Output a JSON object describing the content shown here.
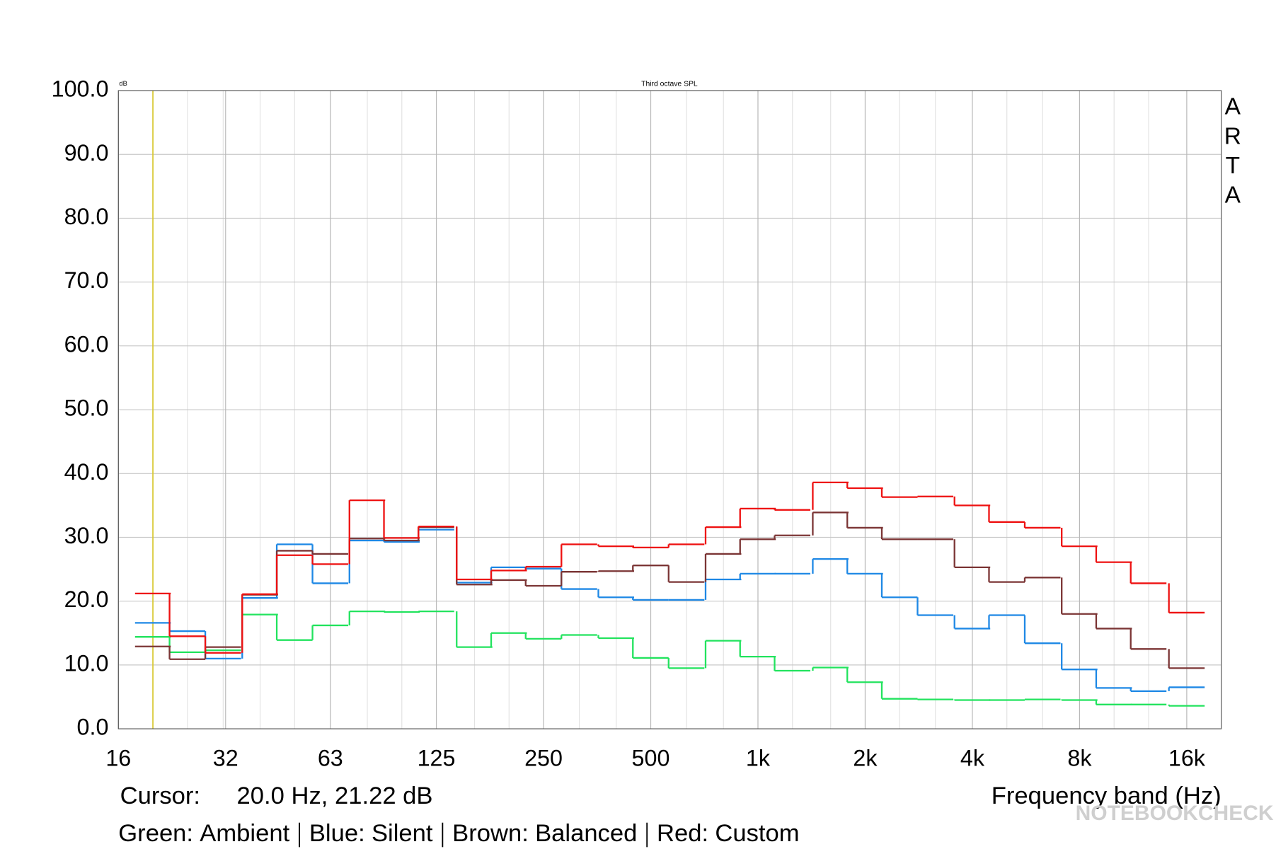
{
  "chart_data": {
    "type": "step",
    "title": "Third octave SPL",
    "y_unit": "dB",
    "side_label": "ARTA",
    "xlabel": "Frequency band (Hz)",
    "cursor": {
      "label": "Cursor:",
      "text": "20.0 Hz, 21.22 dB",
      "x": 20,
      "color": "#d8c830"
    },
    "watermark": "NOTEBOOKCHECK",
    "log_x": true,
    "grid": true,
    "xlim": [
      16,
      20000
    ],
    "xticks": [
      16,
      32,
      63,
      125,
      250,
      500,
      {
        "value": 1000,
        "label": "1k"
      },
      {
        "value": 2000,
        "label": "2k"
      },
      {
        "value": 4000,
        "label": "4k"
      },
      {
        "value": 8000,
        "label": "8k"
      },
      {
        "value": 16000,
        "label": "16k"
      }
    ],
    "ylim": [
      0,
      100
    ],
    "yticks": [
      {
        "value": 0,
        "label": "0.0"
      },
      {
        "value": 10,
        "label": "10.0"
      },
      {
        "value": 20,
        "label": "20.0"
      },
      {
        "value": 30,
        "label": "30.0"
      },
      {
        "value": 40,
        "label": "40.0"
      },
      {
        "value": 50,
        "label": "50.0"
      },
      {
        "value": 60,
        "label": "60.0"
      },
      {
        "value": 70,
        "label": "70.0"
      },
      {
        "value": 80,
        "label": "80.0"
      },
      {
        "value": 90,
        "label": "90.0"
      },
      {
        "value": 100,
        "label": "100.0"
      }
    ],
    "x": [
      20,
      25,
      31.5,
      40,
      50,
      63,
      80,
      100,
      125,
      160,
      200,
      250,
      315,
      400,
      500,
      630,
      800,
      1000,
      1250,
      1600,
      2000,
      2500,
      3150,
      4000,
      5000,
      6300,
      8000,
      10000,
      12500,
      16000
    ],
    "series": [
      {
        "name": "Ambient",
        "legend_label": "Green:",
        "color": "#22e35e",
        "values": [
          14.4,
          12.0,
          12.3,
          17.9,
          13.9,
          16.2,
          18.4,
          18.3,
          18.4,
          12.8,
          15.0,
          14.1,
          14.7,
          14.2,
          11.1,
          9.5,
          13.8,
          11.3,
          9.1,
          9.6,
          7.3,
          4.7,
          4.6,
          4.5,
          4.5,
          4.6,
          4.5,
          3.8,
          3.8,
          3.6
        ]
      },
      {
        "name": "Silent",
        "legend_label": "Blue:",
        "color": "#1e88e5",
        "values": [
          16.6,
          15.3,
          11.0,
          20.5,
          28.9,
          22.8,
          29.5,
          29.3,
          31.2,
          22.9,
          25.3,
          25.1,
          21.9,
          20.6,
          20.2,
          20.2,
          23.4,
          24.3,
          24.3,
          26.6,
          24.3,
          20.6,
          17.8,
          15.7,
          17.8,
          13.4,
          9.3,
          6.4,
          5.9,
          6.5
        ]
      },
      {
        "name": "Balanced",
        "legend_label": "Brown:",
        "color": "#7b3535",
        "values": [
          12.9,
          10.9,
          12.8,
          21.0,
          27.9,
          27.4,
          29.8,
          29.5,
          31.6,
          22.6,
          23.3,
          22.4,
          24.6,
          24.7,
          25.6,
          23.0,
          27.4,
          29.7,
          30.3,
          33.9,
          31.5,
          29.7,
          29.7,
          25.3,
          23.0,
          23.7,
          18.0,
          15.7,
          12.5,
          9.5
        ]
      },
      {
        "name": "Custom",
        "legend_label": "Red:",
        "color": "#ee1111",
        "values": [
          21.2,
          14.5,
          11.9,
          21.1,
          27.2,
          25.8,
          35.8,
          29.9,
          31.7,
          23.4,
          24.8,
          25.4,
          28.9,
          28.6,
          28.4,
          28.9,
          31.6,
          34.5,
          34.3,
          38.6,
          37.7,
          36.3,
          36.4,
          35.0,
          32.4,
          31.5,
          28.6,
          26.1,
          22.8,
          18.2
        ]
      }
    ]
  }
}
